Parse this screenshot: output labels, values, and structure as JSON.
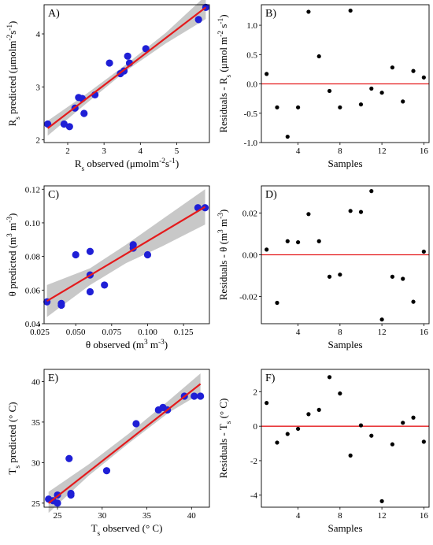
{
  "chart_data": [
    {
      "panel": "A)",
      "type": "scatter",
      "xlabel": "Rs observed (μmolm⁻²s⁻¹)",
      "ylabel": "Rs predicted (μmolm⁻²s⁻¹)",
      "xlim": [
        1.35,
        5.9
      ],
      "ylim": [
        1.95,
        4.55
      ],
      "xticks": [
        2,
        3,
        4,
        5
      ],
      "yticks": [
        2,
        3,
        4
      ],
      "points": {
        "x": [
          1.45,
          1.9,
          2.05,
          2.2,
          2.3,
          2.4,
          2.45,
          2.75,
          3.15,
          3.45,
          3.55,
          3.65,
          3.7,
          4.15,
          5.6,
          5.8
        ],
        "y": [
          2.3,
          2.3,
          2.25,
          2.6,
          2.8,
          2.78,
          2.5,
          2.85,
          3.45,
          3.25,
          3.3,
          3.58,
          3.45,
          3.72,
          4.27,
          4.5
        ]
      },
      "fit": {
        "x": [
          1.45,
          5.8
        ],
        "y": [
          2.22,
          4.5
        ]
      },
      "band": {
        "x": [
          1.45,
          2.5,
          3.6,
          4.7,
          5.8
        ],
        "lower": [
          2.08,
          2.68,
          3.3,
          3.82,
          4.28
        ],
        "upper": [
          2.36,
          2.86,
          3.42,
          4.02,
          4.72
        ]
      }
    },
    {
      "panel": "B)",
      "type": "scatter",
      "xlabel": "Samples",
      "ylabel": "Residuals - Rs (μmol m⁻² s⁻¹)",
      "xlim": [
        0.5,
        16.5
      ],
      "ylim": [
        -1.0,
        1.35
      ],
      "xticks": [
        4,
        8,
        12,
        16
      ],
      "yticks": [
        -1.0,
        -0.5,
        0.0,
        0.5,
        1.0
      ],
      "reference_line": 0,
      "points": {
        "x": [
          1,
          2,
          3,
          4,
          5,
          6,
          7,
          8,
          9,
          10,
          11,
          12,
          13,
          14,
          15,
          16
        ],
        "y": [
          0.17,
          -0.4,
          -0.9,
          -0.4,
          1.23,
          0.47,
          -0.12,
          -0.4,
          1.25,
          -0.35,
          -0.08,
          -0.15,
          0.28,
          -0.3,
          0.22,
          0.11
        ]
      }
    },
    {
      "panel": "C)",
      "type": "scatter",
      "xlabel": "θ observed (m³ m⁻³)",
      "ylabel": "θ predicted (m³ m⁻³)",
      "xlim": [
        0.028,
        0.143
      ],
      "ylim": [
        0.04,
        0.122
      ],
      "xticks": [
        0.025,
        0.05,
        0.075,
        0.1,
        0.125
      ],
      "xtick_labels": [
        "0.025",
        "0.050",
        "0.075",
        "0.100",
        "0.125"
      ],
      "yticks": [
        0.04,
        0.06,
        0.08,
        0.1,
        0.12
      ],
      "ytick_labels": [
        "0.04",
        "0.06",
        "0.08",
        "0.10",
        "0.12"
      ],
      "points": {
        "x": [
          0.03,
          0.04,
          0.04,
          0.05,
          0.06,
          0.06,
          0.06,
          0.07,
          0.09,
          0.09,
          0.1,
          0.135,
          0.14
        ],
        "y": [
          0.053,
          0.051,
          0.052,
          0.081,
          0.083,
          0.069,
          0.059,
          0.063,
          0.087,
          0.085,
          0.081,
          0.109,
          0.109
        ]
      },
      "fit": {
        "x": [
          0.03,
          0.14
        ],
        "y": [
          0.0535,
          0.1095
        ]
      },
      "band": {
        "x": [
          0.03,
          0.06,
          0.085,
          0.11,
          0.14
        ],
        "lower": [
          0.044,
          0.063,
          0.076,
          0.086,
          0.099
        ],
        "upper": [
          0.063,
          0.073,
          0.087,
          0.102,
          0.12
        ]
      }
    },
    {
      "panel": "D)",
      "type": "scatter",
      "xlabel": "Samples",
      "ylabel": "Residuals - θ (m³ m⁻³)",
      "xlim": [
        0.5,
        16.5
      ],
      "ylim": [
        -0.033,
        0.033
      ],
      "xticks": [
        4,
        8,
        12,
        16
      ],
      "yticks": [
        -0.02,
        0.0,
        0.02
      ],
      "ytick_labels": [
        "-0.02",
        "0.00",
        "0.02"
      ],
      "reference_line": 0,
      "points": {
        "x": [
          1,
          2,
          3,
          4,
          5,
          6,
          7,
          8,
          9,
          10,
          11,
          12,
          13,
          14,
          15,
          16
        ],
        "y": [
          0.0025,
          -0.023,
          0.0065,
          0.006,
          0.0195,
          0.0065,
          -0.0105,
          -0.0095,
          0.021,
          0.0205,
          0.0305,
          -0.031,
          -0.0105,
          -0.0115,
          -0.0225,
          0.0015
        ]
      }
    },
    {
      "panel": "E)",
      "type": "scatter",
      "xlabel": "Ts observed (° C)",
      "ylabel": "Ts predicted (° C)",
      "xlim": [
        23.5,
        42
      ],
      "ylim": [
        24.5,
        41.5
      ],
      "xticks": [
        25,
        30,
        35,
        40
      ],
      "yticks": [
        25,
        30,
        35,
        40
      ],
      "points": {
        "x": [
          24,
          24.5,
          25,
          25,
          26.3,
          26.5,
          26.5,
          30.5,
          33.8,
          36.3,
          36.8,
          37.3,
          39.2,
          40.3,
          41
        ],
        "y": [
          25.5,
          25.3,
          25,
          26,
          30.5,
          26.2,
          26,
          29,
          34.8,
          36.5,
          36.8,
          36.5,
          38.2,
          38.2,
          38.2
        ]
      },
      "fit": {
        "x": [
          24,
          41
        ],
        "y": [
          25.0,
          39.7
        ]
      },
      "band": {
        "x": [
          24,
          28.5,
          33,
          37.5,
          41
        ],
        "lower": [
          23.8,
          28.4,
          32.4,
          36.2,
          38.5
        ],
        "upper": [
          26.4,
          29.8,
          33.6,
          37.7,
          41.0
        ]
      }
    },
    {
      "panel": "F)",
      "type": "scatter",
      "xlabel": "Samples",
      "ylabel": "Residuals - Ts (° C)",
      "xlim": [
        0.5,
        16.5
      ],
      "ylim": [
        -4.7,
        3.3
      ],
      "xticks": [
        4,
        8,
        12,
        16
      ],
      "yticks": [
        -4,
        -2,
        0,
        2
      ],
      "reference_line": 0,
      "points": {
        "x": [
          1,
          2,
          3,
          4,
          5,
          6,
          7,
          8,
          9,
          10,
          11,
          12,
          13,
          14,
          15,
          16
        ],
        "y": [
          1.35,
          -0.95,
          -0.45,
          -0.15,
          0.7,
          0.95,
          2.85,
          1.9,
          -1.7,
          0.05,
          -0.55,
          -4.35,
          -1.05,
          0.2,
          0.5,
          -0.9
        ]
      }
    }
  ]
}
